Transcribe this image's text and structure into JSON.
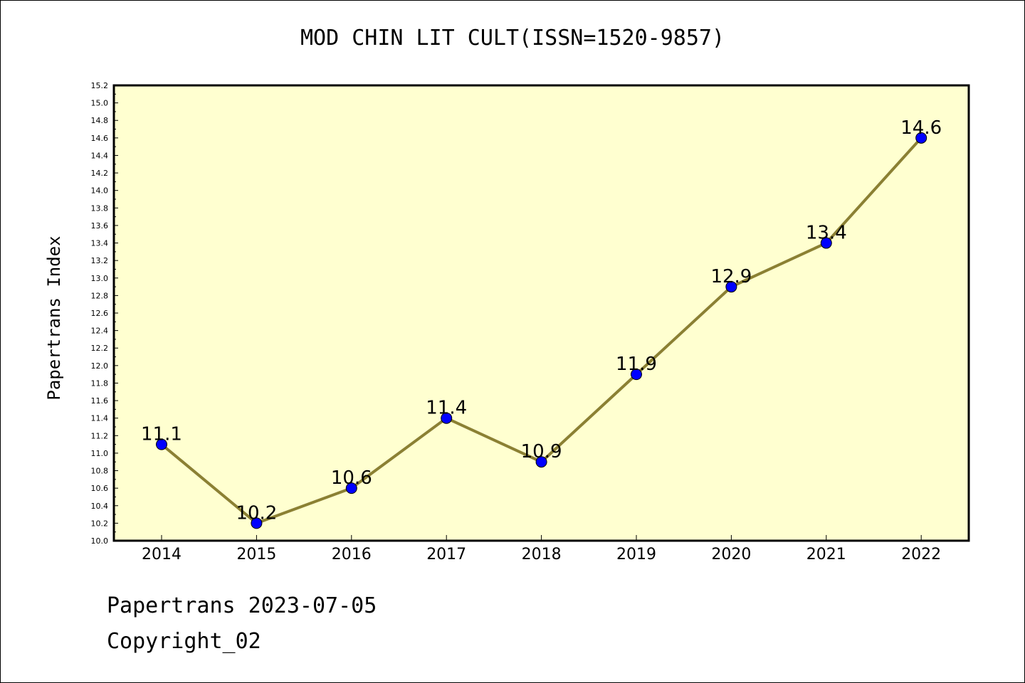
{
  "chart_data": {
    "type": "line",
    "title": "MOD CHIN LIT CULT(ISSN=1520-9857)",
    "xlabel": "",
    "ylabel": "Papertrans Index",
    "categories": [
      "2014",
      "2015",
      "2016",
      "2017",
      "2018",
      "2019",
      "2020",
      "2021",
      "2022"
    ],
    "series": [
      {
        "values": [
          11.1,
          10.2,
          10.6,
          11.4,
          10.9,
          11.9,
          12.9,
          13.4,
          14.6
        ],
        "data_labels": [
          "11.1",
          "10.2",
          "10.6",
          "11.4",
          "10.9",
          "11.9",
          "12.9",
          "13.4",
          "14.6"
        ]
      }
    ],
    "ylim": [
      10.0,
      15.2
    ],
    "y_ticks": [
      "10.0",
      "10.2",
      "10.4",
      "10.6",
      "10.8",
      "11.0",
      "11.2",
      "11.4",
      "11.6",
      "11.8",
      "12.0",
      "12.2",
      "12.4",
      "12.6",
      "12.8",
      "13.0",
      "13.2",
      "13.4",
      "13.6",
      "13.8",
      "14.0",
      "14.2",
      "14.4",
      "14.6",
      "14.8",
      "15.0",
      "15.2"
    ],
    "grid": false,
    "legend": "none",
    "colors": {
      "plot_background": "#ffffd0",
      "line": "#8b8033",
      "marker": "#0000ff",
      "axis": "#000000"
    }
  },
  "footer": {
    "date_line": "Papertrans 2023-07-05",
    "copyright": "Copyright_02"
  }
}
